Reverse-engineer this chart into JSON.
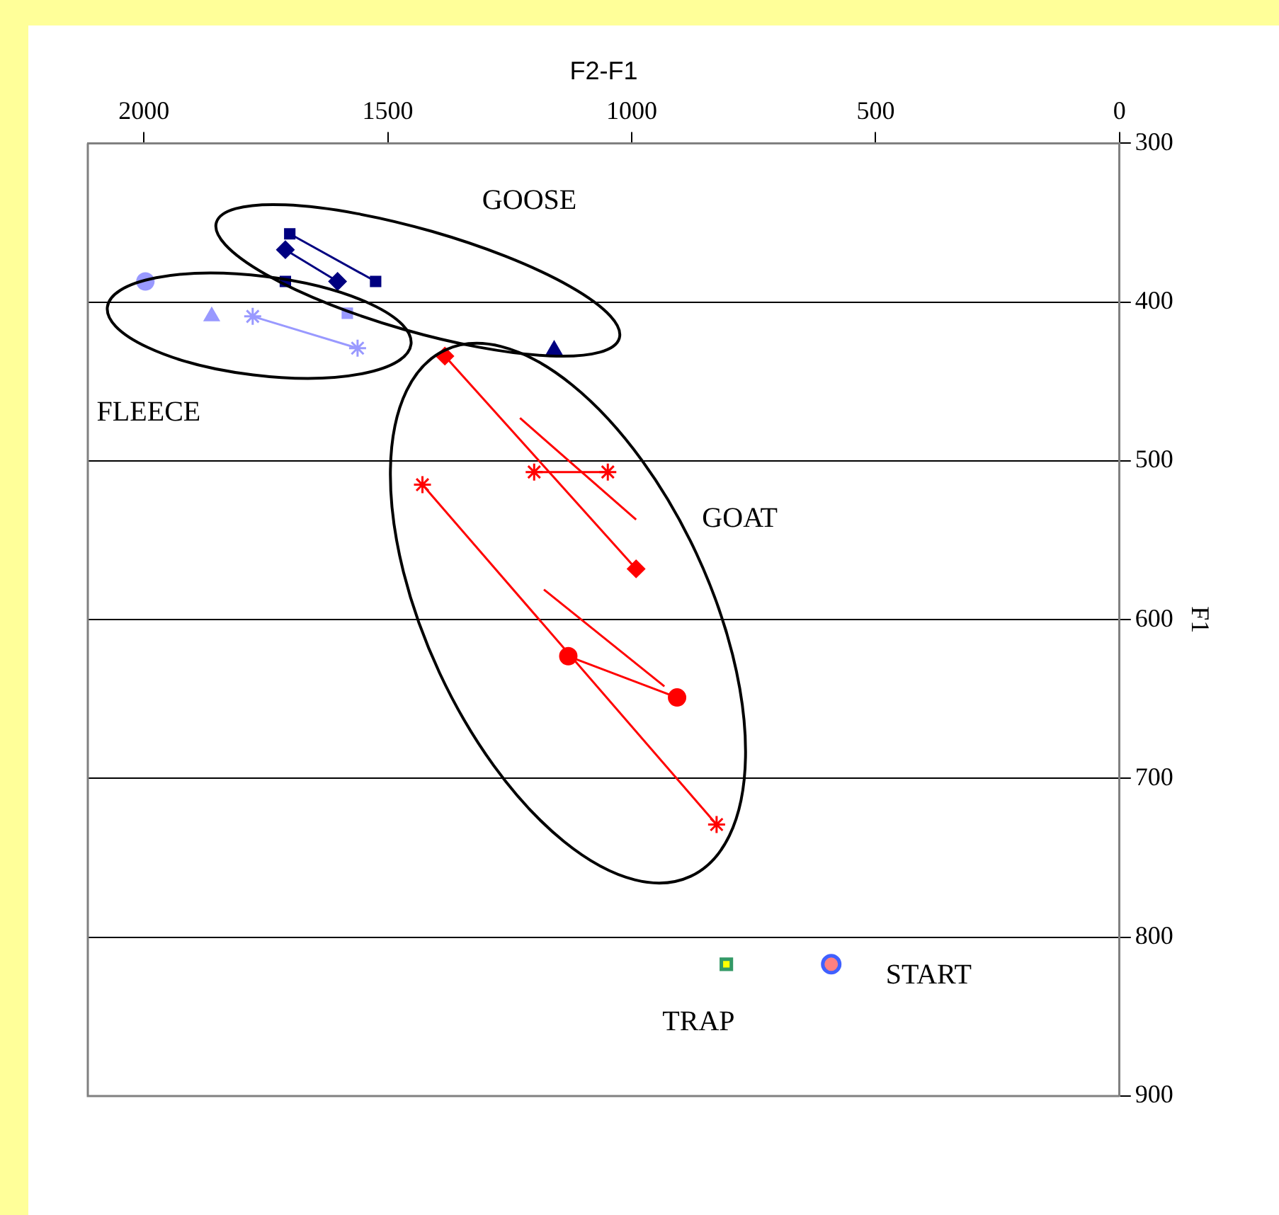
{
  "chart_data": {
    "type": "line",
    "xlabel": "F2-F1",
    "ylabel": "F1",
    "xlim": [
      2115,
      0
    ],
    "xticks": [
      2000,
      1500,
      1000,
      500,
      0
    ],
    "ylim": [
      900,
      300
    ],
    "yticks": [
      300,
      400,
      500,
      600,
      700,
      800,
      900
    ],
    "grid": "y",
    "legend": false,
    "line_style": "solid",
    "series": [
      {
        "color": "#000080",
        "marker": "square",
        "x": [
          1701,
          1525
        ],
        "values": [
          357,
          387
        ]
      },
      {
        "color": "#000080",
        "marker": "diamond",
        "x": [
          1710,
          1603
        ],
        "values": [
          367,
          387
        ]
      },
      {
        "color": "#000080",
        "marker": "square",
        "x": [
          1710
        ],
        "values": [
          387
        ]
      },
      {
        "color": "#000080",
        "marker": "triangle",
        "x": [
          1159
        ],
        "values": [
          430
        ]
      },
      {
        "color": "#9999ff",
        "marker": "circle",
        "x": [
          1997
        ],
        "values": [
          387
        ]
      },
      {
        "color": "#9999ff",
        "marker": "triangle",
        "x": [
          1861
        ],
        "values": [
          409
        ]
      },
      {
        "color": "#9999ff",
        "marker": "cross",
        "x": [
          1777,
          1562
        ],
        "values": [
          409,
          429
        ]
      },
      {
        "color": "#9999ff",
        "marker": "square",
        "x": [
          1583
        ],
        "values": [
          407
        ]
      },
      {
        "color": "#ff0000",
        "marker": "diamond",
        "x": [
          1383,
          991
        ],
        "values": [
          434,
          568
        ]
      },
      {
        "color": "#ff0000",
        "marker": "none",
        "x": [
          1229,
          991
        ],
        "values": [
          473,
          537
        ]
      },
      {
        "color": "#ff0000",
        "marker": "cross",
        "x": [
          1200,
          1049
        ],
        "values": [
          507,
          507
        ]
      },
      {
        "color": "#ff0000",
        "marker": "cross",
        "x": [
          1429,
          826
        ],
        "values": [
          515,
          729
        ]
      },
      {
        "color": "#ff0000",
        "marker": "circle",
        "x": [
          1130,
          907
        ],
        "values": [
          623,
          649
        ]
      },
      {
        "color": "#ff0000",
        "marker": "none",
        "x": [
          1180,
          933
        ],
        "values": [
          581,
          642
        ]
      },
      {
        "color": "#4060ff",
        "marker": "circle",
        "x": [
          591
        ],
        "values": [
          817
        ]
      },
      {
        "color": "#339966",
        "marker": "square",
        "x": [
          806
        ],
        "values": [
          817
        ]
      }
    ],
    "annotations": [
      "GOOSE",
      "FLEECE",
      "GOAT",
      "START",
      "TRAP"
    ]
  }
}
